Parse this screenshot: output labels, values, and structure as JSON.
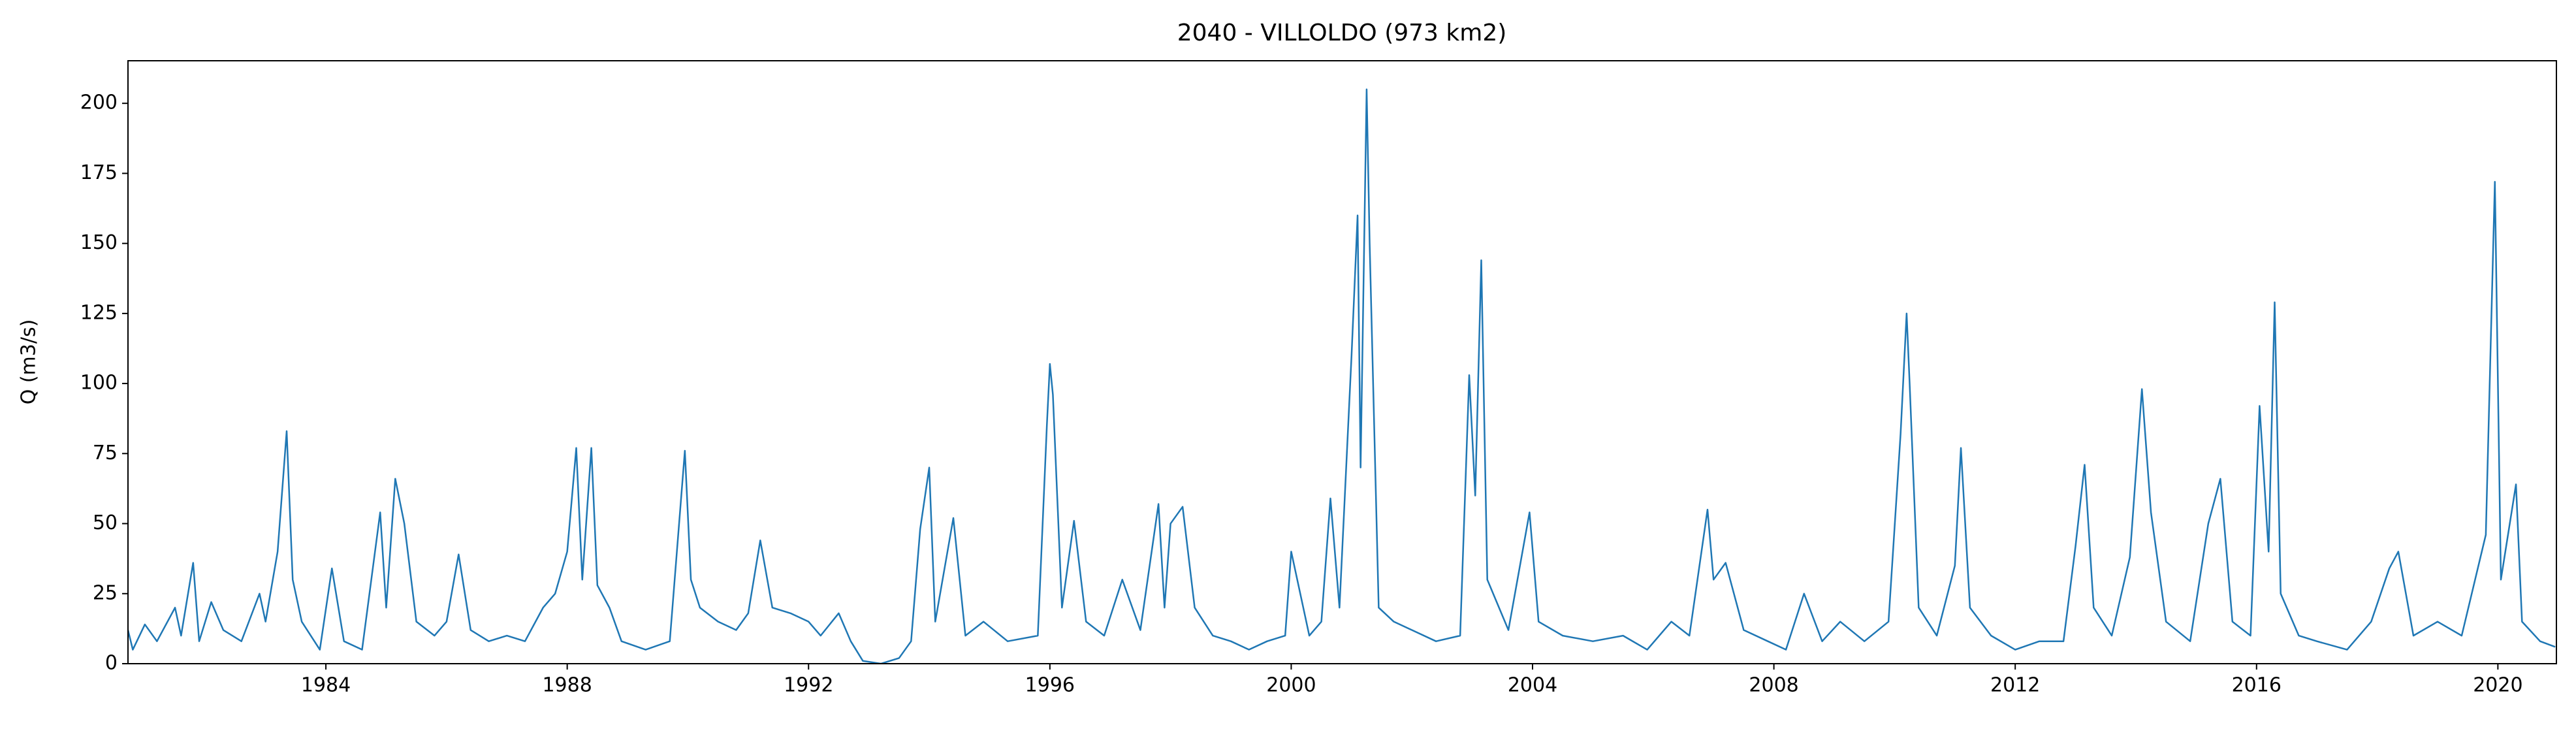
{
  "chart_data": {
    "type": "line",
    "title": "2040 - VILLOLDO (973 km2)",
    "y_label": "Q (m3/s)",
    "color": "#1f77b4",
    "x": [
      1980.72,
      1980.8,
      1981.0,
      1981.2,
      1981.5,
      1981.6,
      1981.8,
      1981.9,
      1982.1,
      1982.3,
      1982.6,
      1982.9,
      1983.0,
      1983.2,
      1983.35,
      1983.45,
      1983.6,
      1983.9,
      1984.1,
      1984.3,
      1984.6,
      1984.9,
      1985.0,
      1985.15,
      1985.3,
      1985.5,
      1985.8,
      1986.0,
      1986.2,
      1986.4,
      1986.7,
      1987.0,
      1987.3,
      1987.6,
      1987.8,
      1988.0,
      1988.15,
      1988.25,
      1988.4,
      1988.5,
      1988.7,
      1988.9,
      1989.3,
      1989.7,
      1989.95,
      1990.05,
      1990.2,
      1990.5,
      1990.8,
      1991.0,
      1991.2,
      1991.4,
      1991.7,
      1992.0,
      1992.2,
      1992.5,
      1992.7,
      1992.9,
      1993.2,
      1993.5,
      1993.7,
      1993.85,
      1994.0,
      1994.1,
      1994.4,
      1994.6,
      1994.9,
      1995.3,
      1995.8,
      1995.95,
      1996.0,
      1996.05,
      1996.2,
      1996.4,
      1996.6,
      1996.9,
      1997.2,
      1997.5,
      1997.8,
      1997.9,
      1998.0,
      1998.2,
      1998.4,
      1998.7,
      1999.0,
      1999.3,
      1999.6,
      1999.9,
      2000.0,
      2000.3,
      2000.5,
      2000.65,
      2000.8,
      2001.0,
      2001.1,
      2001.15,
      2001.25,
      2001.3,
      2001.45,
      2001.7,
      2002.0,
      2002.4,
      2002.8,
      2002.95,
      2003.05,
      2003.15,
      2003.25,
      2003.6,
      2003.95,
      2004.1,
      2004.5,
      2005.0,
      2005.5,
      2005.9,
      2006.3,
      2006.6,
      2006.9,
      2007.0,
      2007.2,
      2007.5,
      2007.9,
      2008.2,
      2008.5,
      2008.8,
      2009.1,
      2009.5,
      2009.9,
      2010.1,
      2010.2,
      2010.25,
      2010.4,
      2010.7,
      2011.0,
      2011.1,
      2011.25,
      2011.6,
      2012.0,
      2012.4,
      2012.8,
      2013.0,
      2013.15,
      2013.3,
      2013.6,
      2013.9,
      2014.1,
      2014.25,
      2014.5,
      2014.9,
      2015.2,
      2015.4,
      2015.6,
      2015.9,
      2016.05,
      2016.2,
      2016.3,
      2016.4,
      2016.7,
      2017.0,
      2017.5,
      2017.9,
      2018.2,
      2018.35,
      2018.6,
      2019.0,
      2019.4,
      2019.8,
      2019.95,
      2020.05,
      2020.3,
      2020.4,
      2020.7,
      2020.95
    ],
    "values": [
      12,
      5,
      14,
      8,
      20,
      10,
      36,
      8,
      22,
      12,
      8,
      25,
      15,
      40,
      83,
      30,
      15,
      5,
      34,
      8,
      5,
      54,
      20,
      66,
      50,
      15,
      10,
      15,
      39,
      12,
      8,
      10,
      8,
      20,
      25,
      40,
      77,
      30,
      77,
      28,
      20,
      8,
      5,
      8,
      76,
      30,
      20,
      15,
      12,
      18,
      44,
      20,
      18,
      15,
      10,
      18,
      8,
      1,
      0,
      2,
      8,
      48,
      70,
      15,
      52,
      10,
      15,
      8,
      10,
      85,
      107,
      96,
      20,
      51,
      15,
      10,
      30,
      12,
      57,
      20,
      50,
      56,
      20,
      10,
      8,
      5,
      8,
      10,
      40,
      10,
      15,
      59,
      20,
      110,
      160,
      70,
      205,
      150,
      20,
      15,
      12,
      8,
      10,
      103,
      60,
      144,
      30,
      12,
      54,
      15,
      10,
      8,
      10,
      5,
      15,
      10,
      55,
      30,
      36,
      12,
      8,
      5,
      25,
      8,
      15,
      8,
      15,
      82,
      125,
      100,
      20,
      10,
      35,
      77,
      20,
      10,
      5,
      8,
      8,
      42,
      71,
      20,
      10,
      38,
      98,
      54,
      15,
      8,
      50,
      66,
      15,
      10,
      92,
      40,
      129,
      25,
      10,
      8,
      5,
      15,
      34,
      40,
      10,
      15,
      10,
      46,
      172,
      30,
      64,
      15,
      8,
      6
    ],
    "xlim": [
      1980.72,
      2020.97
    ],
    "xticks": [
      1984,
      1988,
      1992,
      1996,
      2000,
      2004,
      2008,
      2012,
      2016,
      2020
    ],
    "ylim": [
      0,
      215.2
    ],
    "yticks": [
      0,
      25,
      50,
      75,
      100,
      125,
      150,
      175,
      200
    ]
  }
}
